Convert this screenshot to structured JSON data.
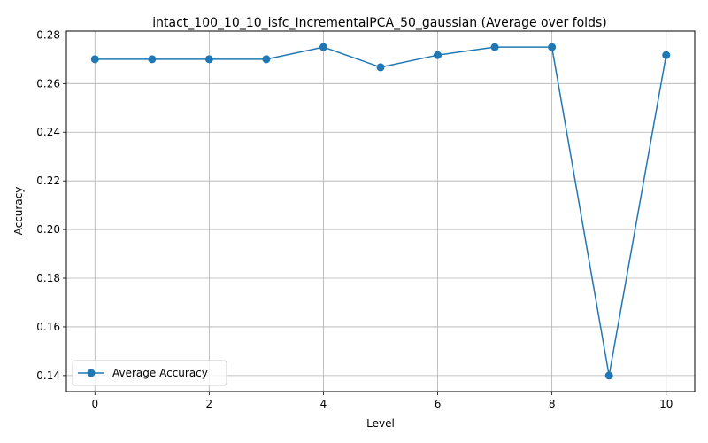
{
  "chart_data": {
    "type": "line",
    "title": "intact_100_10_10_isfc_IncrementalPCA_50_gaussian (Average over folds)",
    "xlabel": "Level",
    "ylabel": "Accuracy",
    "xlim": [
      -0.5,
      10.5
    ],
    "ylim": [
      0.1334,
      0.2816
    ],
    "xticks": [
      0,
      2,
      4,
      6,
      8,
      10
    ],
    "xtick_labels": [
      "0",
      "2",
      "4",
      "6",
      "8",
      "10"
    ],
    "yticks": [
      0.14,
      0.16,
      0.18,
      0.2,
      0.22,
      0.24,
      0.26,
      0.28
    ],
    "ytick_labels": [
      "0.14",
      "0.16",
      "0.18",
      "0.20",
      "0.22",
      "0.24",
      "0.26",
      "0.28"
    ],
    "grid": true,
    "legend_position": "lower-left",
    "series": [
      {
        "name": "Average Accuracy",
        "color": "#1f77b4",
        "marker": "circle",
        "x": [
          0,
          1,
          2,
          3,
          4,
          5,
          6,
          7,
          8,
          9,
          10
        ],
        "values": [
          0.27,
          0.27,
          0.27,
          0.27,
          0.275,
          0.2667,
          0.2717,
          0.275,
          0.275,
          0.14,
          0.2717
        ]
      }
    ]
  }
}
